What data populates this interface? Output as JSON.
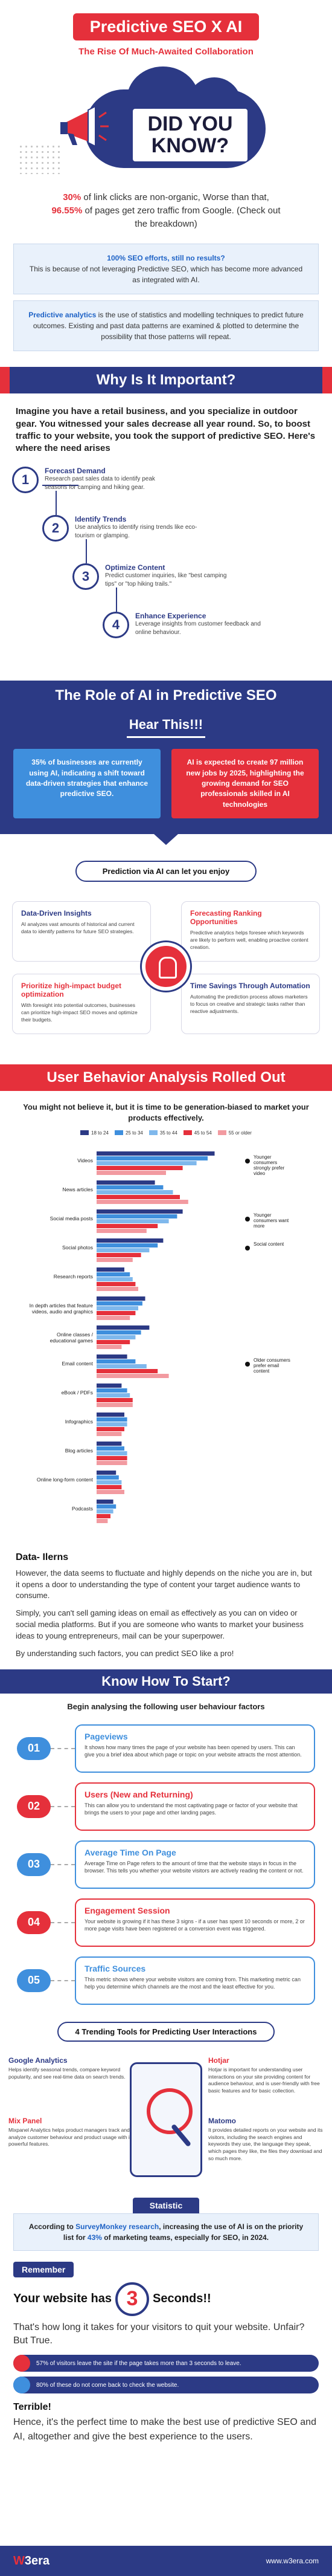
{
  "header": {
    "title": "Predictive SEO X AI",
    "subtitle": "The Rise Of Much-Awaited Collaboration"
  },
  "did_you_know": {
    "heading": "DID YOU KNOW?",
    "pct1": "30%",
    "line1": " of link clicks are non-organic, Worse than that, ",
    "pct2": "96.55%",
    "line2": " of pages get zero traffic from Google. (Check out the breakdown)"
  },
  "info": {
    "q_hl": "100% SEO efforts, still no results?",
    "q_body": "This is because of not leveraging Predictive SEO, which has become more advanced as integrated with AI.",
    "pa_hl": "Predictive analytics",
    "pa_body": " is the use of statistics and modelling techniques to predict future outcomes. Existing and past data patterns are examined & plotted to determine the possibility that those patterns will repeat."
  },
  "why": {
    "heading": "Why Is It Important?",
    "intro": "Imagine you have a retail business, and you specialize in outdoor gear. You witnessed your sales decrease all year round. So, to boost traffic to your website, you took the support of predictive SEO. Here's where the need arises",
    "steps": [
      {
        "num": "1",
        "title": "Forecast Demand",
        "desc": "Research past sales data to identify peak seasons for camping and hiking gear."
      },
      {
        "num": "2",
        "title": "Identify Trends",
        "desc": "Use analytics to identify rising trends like eco-tourism or glamping."
      },
      {
        "num": "3",
        "title": "Optimize Content",
        "desc": "Predict customer inquiries, like \"best camping tips\" or \"top hiking trails.\""
      },
      {
        "num": "4",
        "title": "Enhance Experience",
        "desc": "Leverage insights from customer feedback and online behaviour."
      }
    ]
  },
  "role": {
    "heading": "The Role of AI in Predictive SEO",
    "hear": "Hear This!!!",
    "stat1": "35% of businesses are currently using AI, indicating a shift toward data-driven strategies that enhance predictive SEO.",
    "stat2": "AI is expected to create 97 million new jobs by 2025, highlighting the growing demand for SEO professionals skilled in AI technologies"
  },
  "prediction": {
    "pill": "Prediction via AI can let you enjoy",
    "cards": [
      {
        "title": "Data-Driven Insights",
        "desc": "AI analyzes vast amounts of historical and current data to identify patterns for future SEO strategies."
      },
      {
        "title": "Forecasting Ranking Opportunities",
        "desc": "Predictive analytics helps foresee which keywords are likely to perform well, enabling proactive content creation."
      },
      {
        "title": "Prioritize high-impact budget optimization",
        "desc": "With foresight into potential outcomes, businesses can prioritize high-impact SEO moves and optimize their budgets."
      },
      {
        "title": "Time Savings Through Automation",
        "desc": "Automating the prediction process allows marketers to focus on creative and strategic tasks rather than reactive adjustments."
      }
    ]
  },
  "ub": {
    "heading": "User Behavior Analysis Rolled Out",
    "intro": "You might not believe it, but it is time to be generation-biased to market your products effectively.",
    "legend": [
      "18 to 24",
      "25 to 34",
      "35 to 44",
      "45 to 54",
      "55 or older"
    ],
    "annotations": [
      "Younger consumers strongly prefer video",
      "Younger consumers want more",
      "Social content",
      "Older consumers prefer email content"
    ]
  },
  "chart_data": {
    "type": "bar",
    "title": "",
    "xlabel": "",
    "ylabel": "",
    "categories": [
      "Videos",
      "News articles",
      "Social media posts",
      "Social photos",
      "Research reports",
      "In depth articles that feature videos, audio and graphics",
      "Online classes / educational games",
      "Email content",
      "eBook / PDFs",
      "Infographics",
      "Blog articles",
      "Online long-form content",
      "Podcasts"
    ],
    "series": [
      {
        "name": "18 to 24",
        "values": [
          85,
          42,
          62,
          48,
          20,
          35,
          38,
          22,
          18,
          20,
          18,
          14,
          12
        ]
      },
      {
        "name": "25 to 34",
        "values": [
          80,
          48,
          58,
          44,
          24,
          33,
          32,
          28,
          22,
          22,
          20,
          16,
          14
        ]
      },
      {
        "name": "35 to 44",
        "values": [
          72,
          55,
          52,
          38,
          26,
          30,
          28,
          36,
          24,
          22,
          22,
          18,
          12
        ]
      },
      {
        "name": "45 to 54",
        "values": [
          62,
          60,
          44,
          32,
          28,
          28,
          24,
          44,
          26,
          20,
          22,
          18,
          10
        ]
      },
      {
        "name": "55 or older",
        "values": [
          50,
          66,
          36,
          26,
          30,
          24,
          18,
          52,
          26,
          18,
          22,
          20,
          8
        ]
      }
    ],
    "colors": [
      "#2c3a85",
      "#3f8fdd",
      "#7fb8ec",
      "#e5303b",
      "#f29aa0"
    ]
  },
  "data_ilerns": {
    "heading": "Data- Ilerns",
    "p1": "However, the data seems to fluctuate and highly depends on the niche you are in, but it opens a door to understanding the type of content your target audience wants to consume.",
    "p2": "Simply, you can't sell gaming ideas on email as effectively as you can on video or social media platforms. But if you are someone who wants to market your business ideas to young entrepreneurs, mail can be your superpower.",
    "p3": "By understanding such factors, you can predict SEO like a pro!"
  },
  "start": {
    "heading": "Know How To Start?",
    "intro": "Begin analysing the following user behaviour factors",
    "factors": [
      {
        "num": "01",
        "title": "Pageviews",
        "desc": "It shows how many times the page of your website has been opened by users. This can give you a brief idea about which page or topic on your website attracts the most attention.",
        "color": "#3f8fdd"
      },
      {
        "num": "02",
        "title": "Users (New and Returning)",
        "desc": "This can allow you to understand the most captivating page or factor of your website that brings the users to your page and other landing pages.",
        "color": "#e5303b"
      },
      {
        "num": "03",
        "title": "Average Time On Page",
        "desc": "Average Time on Page refers to the amount of time that the website stays in focus in the browser. This tells you whether your website visitors are actively reading the content or not.",
        "color": "#3f8fdd"
      },
      {
        "num": "04",
        "title": "Engagement Session",
        "desc": "Your website is growing if it has these 3 signs - if a user has spent 10 seconds or more, 2 or more page visits have been registered or a conversion event was triggered.",
        "color": "#e5303b"
      },
      {
        "num": "05",
        "title": "Traffic Sources",
        "desc": "This metric shows where your website visitors are coming from. This marketing metric can help you determine which channels are the most and the least effective for you.",
        "color": "#3f8fdd"
      }
    ]
  },
  "tools": {
    "pill": "4 Trending Tools for Predicting User Interactions",
    "items": [
      {
        "title": "Google Analytics",
        "desc": "Helps identify seasonal trends, compare keyword popularity, and see real-time data on search trends."
      },
      {
        "title": "Hotjar",
        "desc": "Hotjar is important for understanding user interactions on your site providing content for audience behaviour, and is user-friendly with free basic features and for basic collection."
      },
      {
        "title": "Mix Panel",
        "desc": "Mixpanel Analytics helps product managers track and analyze customer behaviour and product usage with its powerful features."
      },
      {
        "title": "Matomo",
        "desc": "It provides detailed reports on your website and its visitors, including the search engines and keywords they use, the language they speak, which pages they like, the files they download and so much more."
      }
    ]
  },
  "statistic": {
    "label": "Statistic",
    "pre": "According to ",
    "hl": "SurveyMonkey research",
    "mid": ", increasing the use of AI is on the priority list for ",
    "pct": "43%",
    "post": " of marketing teams, especially for SEO, in 2024."
  },
  "remember": {
    "label": "Remember",
    "line_pre": "Your website has",
    "num": "3",
    "line_post": "Seconds!!",
    "q": "That's how long it takes for your visitors to quit your website. Unfair? But True.",
    "bar1": "57% of visitors leave the site if the page takes more than 3 seconds to leave.",
    "bar2": "80% of these do not come back to check the website.",
    "terrible": "Terrible!",
    "terrible_body": "Hence, it's the perfect time to make the best use of predictive SEO and AI, altogether and give the best experience to the users."
  },
  "footer": {
    "logo_w": "W",
    "logo_rest": "3era",
    "site": "www.w3era.com"
  }
}
